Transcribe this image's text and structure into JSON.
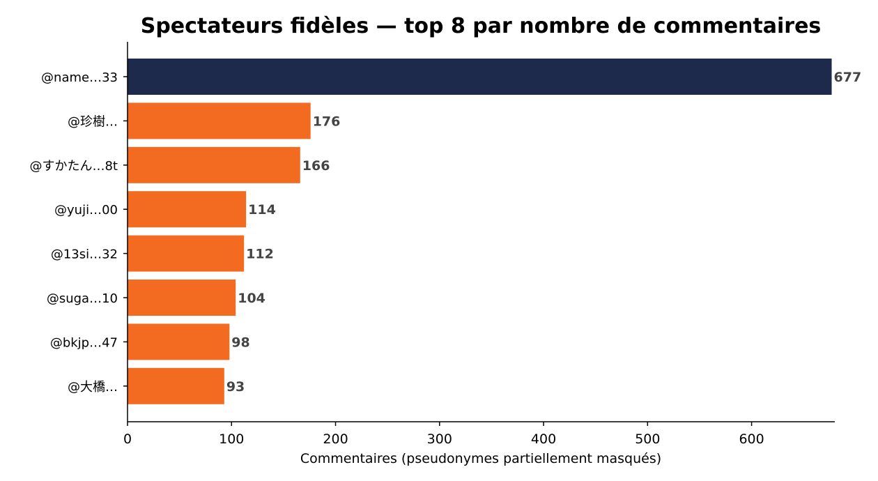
{
  "chart_data": {
    "type": "bar",
    "orientation": "horizontal",
    "title": "Spectateurs fidèles — top 8 par nombre de commentaires",
    "xlabel": "Commentaires (pseudonymes partiellement masqués)",
    "ylabel": "",
    "xlim": [
      0,
      680
    ],
    "xticks": [
      0,
      100,
      200,
      300,
      400,
      500,
      600
    ],
    "categories": [
      "@name…33",
      "@珍樹…",
      "@すかたん…8t",
      "@yuji…00",
      "@13si…32",
      "@suga…10",
      "@bkjp…47",
      "@大橋…"
    ],
    "values": [
      677,
      176,
      166,
      114,
      112,
      104,
      98,
      93
    ],
    "colors": {
      "highlight": "#1d2a4b",
      "default": "#f26b21",
      "value_label": "#444444"
    },
    "grid": false,
    "legend": "none"
  }
}
